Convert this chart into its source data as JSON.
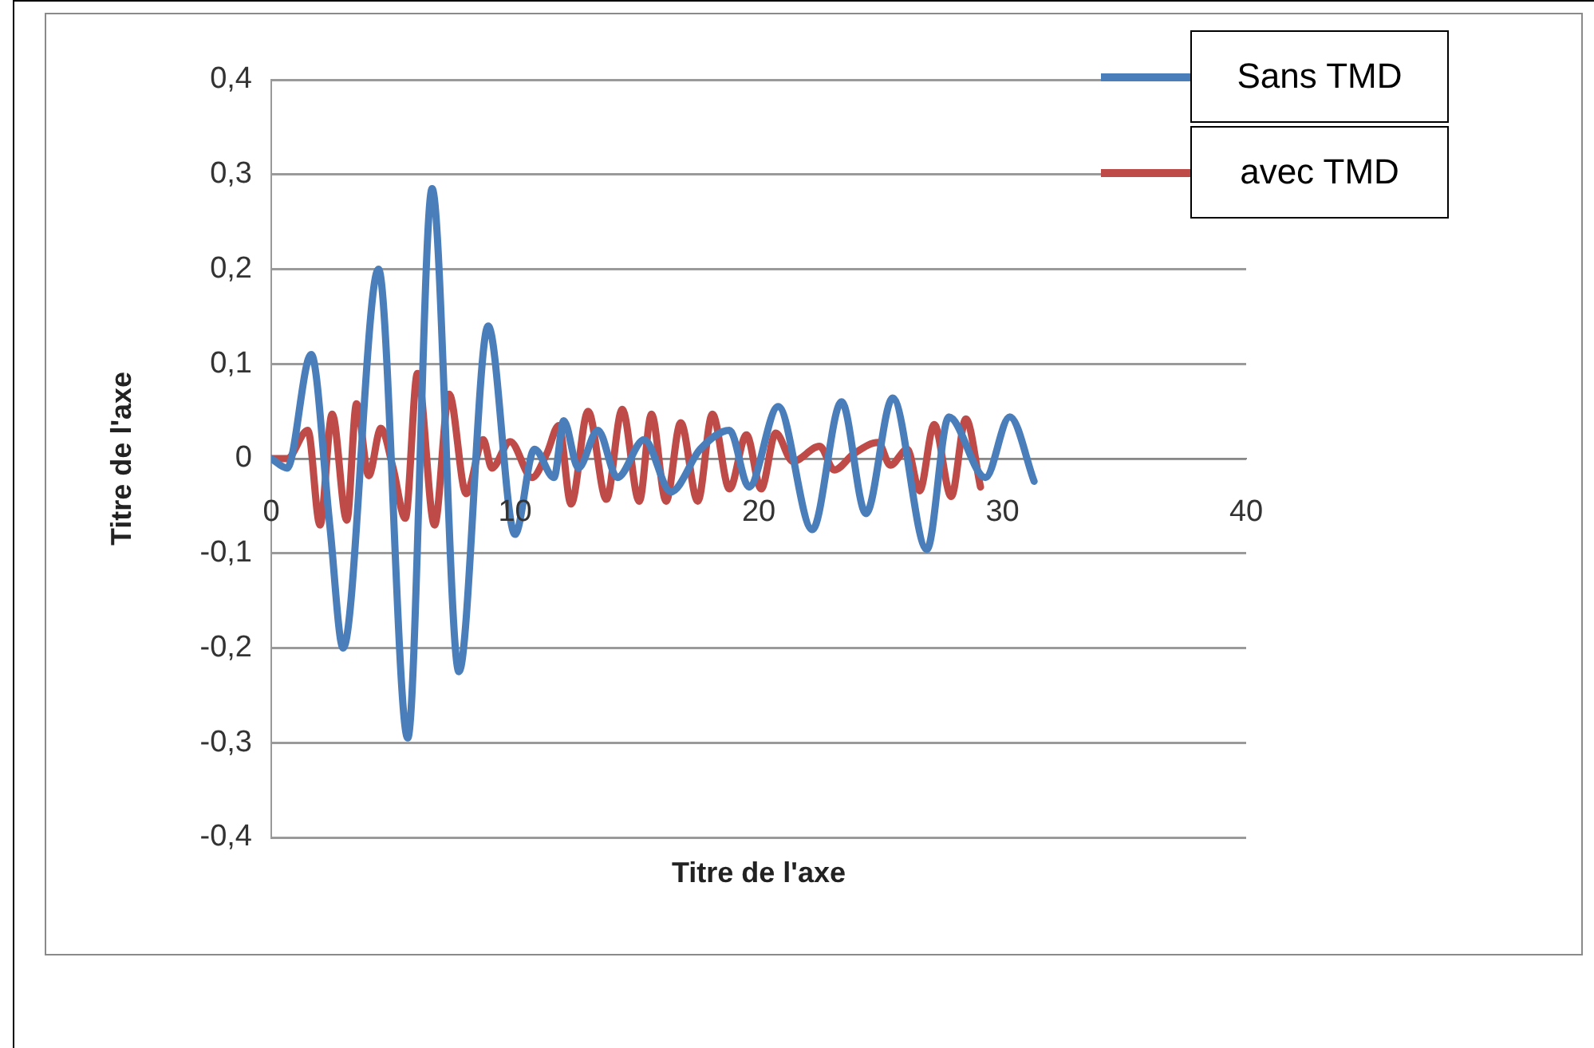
{
  "chart_data": {
    "type": "line",
    "xlabel": "Titre de l'axe",
    "ylabel": "Titre de l'axe",
    "xlim": [
      0,
      40
    ],
    "xticks": [
      0,
      10,
      20,
      30,
      40
    ],
    "ylim": [
      -0.4,
      0.4
    ],
    "yticks": [
      {
        "value": -0.4,
        "label": "-0,4"
      },
      {
        "value": -0.3,
        "label": "-0,3"
      },
      {
        "value": -0.2,
        "label": "-0,2"
      },
      {
        "value": -0.1,
        "label": "-0,1"
      },
      {
        "value": 0,
        "label": "0"
      },
      {
        "value": 0.1,
        "label": "0,1"
      },
      {
        "value": 0.2,
        "label": "0,2"
      },
      {
        "value": 0.3,
        "label": "0,3"
      },
      {
        "value": 0.4,
        "label": "0,4"
      }
    ],
    "grid": "y",
    "legend": "top right",
    "marker": "none",
    "line_style": "solid",
    "series": [
      {
        "name": "Sans TMD",
        "color": "#4a7ebb",
        "x": [
          0,
          0.65,
          1.64,
          2.4,
          2.95,
          4.4,
          5.6,
          6.6,
          7.7,
          8.9,
          10.0,
          10.8,
          11.6,
          12.0,
          12.6,
          13.4,
          14.2,
          15.3,
          16.4,
          17.6,
          18.8,
          19.6,
          20.8,
          22.2,
          23.4,
          24.4,
          25.5,
          26.9,
          27.8,
          29.3,
          30.3,
          31.3
        ],
        "values": [
          0,
          -0.01,
          0.11,
          -0.07,
          -0.2,
          0.2,
          -0.295,
          0.285,
          -0.225,
          0.14,
          -0.08,
          0.01,
          -0.02,
          0.04,
          -0.01,
          0.03,
          -0.02,
          0.02,
          -0.035,
          0.01,
          0.03,
          -0.03,
          0.055,
          -0.075,
          0.06,
          -0.058,
          0.064,
          -0.096,
          0.044,
          -0.02,
          0.044,
          -0.024
        ]
      },
      {
        "name": "avec TMD",
        "color": "#be4b48",
        "x": [
          0,
          0.65,
          1.5,
          2.0,
          2.5,
          3.1,
          3.5,
          4.0,
          4.5,
          5.0,
          5.5,
          6.0,
          6.7,
          7.3,
          8.0,
          8.7,
          9.05,
          9.8,
          10.7,
          11.3,
          11.8,
          12.3,
          13.0,
          13.75,
          14.4,
          15.1,
          15.6,
          16.2,
          16.8,
          17.5,
          18.1,
          18.8,
          19.5,
          20.1,
          20.7,
          21.4,
          22.5,
          23.1,
          23.9,
          24.9,
          25.4,
          26.1,
          26.6,
          27.2,
          27.9,
          28.5,
          29.1
        ],
        "values": [
          0,
          0,
          0.03,
          -0.07,
          0.047,
          -0.065,
          0.058,
          -0.018,
          0.032,
          -0.01,
          -0.063,
          0.09,
          -0.07,
          0.068,
          -0.037,
          0.02,
          -0.01,
          0.018,
          -0.02,
          0.005,
          0.035,
          -0.048,
          0.05,
          -0.043,
          0.052,
          -0.045,
          0.047,
          -0.045,
          0.038,
          -0.045,
          0.047,
          -0.032,
          0.025,
          -0.032,
          0.027,
          -0.003,
          0.013,
          -0.012,
          0.005,
          0.017,
          -0.007,
          0.01,
          -0.034,
          0.036,
          -0.04,
          0.042,
          -0.03
        ]
      }
    ]
  }
}
